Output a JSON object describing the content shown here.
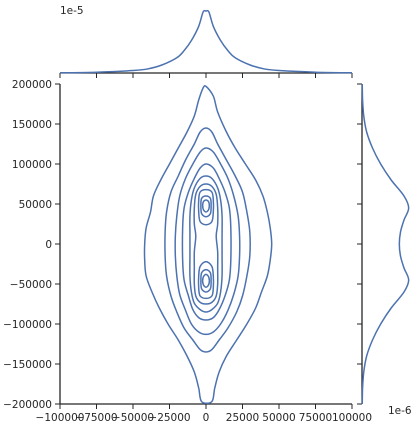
{
  "chart_data": {
    "type": "jointplot-kde",
    "title": "",
    "xlabel": "",
    "ylabel": "",
    "joint": {
      "xlim": [
        -100000,
        100000
      ],
      "ylim": [
        -200000,
        200000
      ],
      "xticks": [
        -100000,
        -75000,
        -50000,
        -25000,
        0,
        25000,
        50000,
        75000,
        100000
      ],
      "xtick_labels": [
        "−100000",
        "−75000",
        "−50000",
        "−25000",
        "0",
        "25000",
        "50000",
        "75000",
        "100000"
      ],
      "yticks": [
        -200000,
        -150000,
        -100000,
        -50000,
        0,
        50000,
        100000,
        150000,
        200000
      ],
      "ytick_labels": [
        "−200000",
        "−150000",
        "−100000",
        "−50000",
        "0",
        "50000",
        "100000",
        "150000",
        "200000"
      ],
      "contours": [
        {
          "level": 1,
          "points": [
            [
              0,
              197000
            ],
            [
              5000,
              185000
            ],
            [
              8000,
              165000
            ],
            [
              14000,
              140000
            ],
            [
              20000,
              120000
            ],
            [
              27000,
              100000
            ],
            [
              34000,
              80000
            ],
            [
              39000,
              60000
            ],
            [
              42000,
              40000
            ],
            [
              44000,
              20000
            ],
            [
              45000,
              0
            ],
            [
              44000,
              -20000
            ],
            [
              42000,
              -40000
            ],
            [
              38000,
              -60000
            ],
            [
              34000,
              -80000
            ],
            [
              28000,
              -100000
            ],
            [
              21000,
              -120000
            ],
            [
              14000,
              -140000
            ],
            [
              9000,
              -160000
            ],
            [
              6000,
              -180000
            ],
            [
              4000,
              -197000
            ],
            [
              -3000,
              -197000
            ],
            [
              -5000,
              -180000
            ],
            [
              -8000,
              -160000
            ],
            [
              -13000,
              -140000
            ],
            [
              -19000,
              -120000
            ],
            [
              -26000,
              -100000
            ],
            [
              -32000,
              -80000
            ],
            [
              -37000,
              -60000
            ],
            [
              -41000,
              -40000
            ],
            [
              -42000,
              -20000
            ],
            [
              -42000,
              0
            ],
            [
              -41000,
              20000
            ],
            [
              -38000,
              40000
            ],
            [
              -36000,
              60000
            ],
            [
              -31000,
              80000
            ],
            [
              -25000,
              100000
            ],
            [
              -19000,
              120000
            ],
            [
              -13000,
              140000
            ],
            [
              -8000,
              160000
            ],
            [
              -5000,
              180000
            ],
            [
              -2000,
              195000
            ]
          ]
        },
        {
          "level": 2,
          "points": [
            [
              0,
              145000
            ],
            [
              4000,
              140000
            ],
            [
              8000,
              125000
            ],
            [
              14000,
              105000
            ],
            [
              20000,
              85000
            ],
            [
              25000,
              65000
            ],
            [
              28000,
              40000
            ],
            [
              30000,
              15000
            ],
            [
              30000,
              -15000
            ],
            [
              28000,
              -40000
            ],
            [
              25000,
              -65000
            ],
            [
              21000,
              -85000
            ],
            [
              15000,
              -105000
            ],
            [
              9000,
              -120000
            ],
            [
              4000,
              -132000
            ],
            [
              0,
              -135000
            ],
            [
              -4000,
              -132000
            ],
            [
              -9000,
              -120000
            ],
            [
              -15000,
              -105000
            ],
            [
              -20000,
              -85000
            ],
            [
              -24000,
              -65000
            ],
            [
              -27000,
              -40000
            ],
            [
              -28000,
              -15000
            ],
            [
              -28000,
              15000
            ],
            [
              -27000,
              40000
            ],
            [
              -24000,
              65000
            ],
            [
              -19000,
              85000
            ],
            [
              -14000,
              105000
            ],
            [
              -8000,
              125000
            ],
            [
              -4000,
              140000
            ]
          ]
        },
        {
          "level": 3,
          "points": [
            [
              0,
              120000
            ],
            [
              5000,
              115000
            ],
            [
              10000,
              100000
            ],
            [
              15000,
              82000
            ],
            [
              19000,
              60000
            ],
            [
              22000,
              35000
            ],
            [
              23000,
              10000
            ],
            [
              23000,
              -15000
            ],
            [
              22000,
              -40000
            ],
            [
              19000,
              -63000
            ],
            [
              15000,
              -83000
            ],
            [
              10000,
              -100000
            ],
            [
              5000,
              -110000
            ],
            [
              0,
              -113000
            ],
            [
              -5000,
              -110000
            ],
            [
              -10000,
              -100000
            ],
            [
              -14000,
              -83000
            ],
            [
              -18000,
              -63000
            ],
            [
              -20000,
              -40000
            ],
            [
              -21000,
              -15000
            ],
            [
              -21000,
              10000
            ],
            [
              -20000,
              35000
            ],
            [
              -18000,
              60000
            ],
            [
              -14000,
              82000
            ],
            [
              -9000,
              100000
            ],
            [
              -4000,
              115000
            ]
          ]
        },
        {
          "level": 4,
          "points": [
            [
              0,
              100000
            ],
            [
              5000,
              95000
            ],
            [
              9000,
              82000
            ],
            [
              13000,
              65000
            ],
            [
              16000,
              45000
            ],
            [
              17000,
              20000
            ],
            [
              17000,
              -20000
            ],
            [
              16000,
              -45000
            ],
            [
              13000,
              -65000
            ],
            [
              9000,
              -82000
            ],
            [
              5000,
              -92000
            ],
            [
              0,
              -95000
            ],
            [
              -5000,
              -92000
            ],
            [
              -9000,
              -82000
            ],
            [
              -12000,
              -65000
            ],
            [
              -15000,
              -45000
            ],
            [
              -16000,
              -20000
            ],
            [
              -16000,
              20000
            ],
            [
              -15000,
              45000
            ],
            [
              -12000,
              65000
            ],
            [
              -8000,
              82000
            ],
            [
              -4000,
              95000
            ]
          ]
        },
        {
          "level": 5,
          "points": [
            [
              0,
              85000
            ],
            [
              4000,
              82000
            ],
            [
              8000,
              70000
            ],
            [
              10000,
              55000
            ],
            [
              11000,
              35000
            ],
            [
              11000,
              10000
            ],
            [
              11000,
              -15000
            ],
            [
              11000,
              -40000
            ],
            [
              10000,
              -60000
            ],
            [
              8000,
              -74000
            ],
            [
              4000,
              -82000
            ],
            [
              0,
              -85000
            ],
            [
              -4000,
              -82000
            ],
            [
              -8000,
              -74000
            ],
            [
              -10000,
              -60000
            ],
            [
              -11000,
              -40000
            ],
            [
              -11000,
              -15000
            ],
            [
              -11000,
              10000
            ],
            [
              -11000,
              35000
            ],
            [
              -10000,
              55000
            ],
            [
              -8000,
              70000
            ],
            [
              -4000,
              82000
            ]
          ]
        },
        {
          "level": 6,
          "points": [
            [
              0,
              75000
            ],
            [
              4000,
              72000
            ],
            [
              7000,
              62000
            ],
            [
              8000,
              45000
            ],
            [
              8000,
              25000
            ],
            [
              7000,
              10000
            ],
            [
              8000,
              -10000
            ],
            [
              8000,
              -30000
            ],
            [
              8000,
              -50000
            ],
            [
              7000,
              -65000
            ],
            [
              4000,
              -73000
            ],
            [
              0,
              -75000
            ],
            [
              -4000,
              -73000
            ],
            [
              -7000,
              -65000
            ],
            [
              -8000,
              -50000
            ],
            [
              -8000,
              -30000
            ],
            [
              -8000,
              -10000
            ],
            [
              -7000,
              10000
            ],
            [
              -8000,
              25000
            ],
            [
              -8000,
              45000
            ],
            [
              -7000,
              62000
            ],
            [
              -4000,
              72000
            ]
          ]
        },
        {
          "level": 7,
          "points": [
            [
              0,
              68000
            ],
            [
              4000,
              65000
            ],
            [
              5000,
              55000
            ],
            [
              5000,
              40000
            ],
            [
              4000,
              28000
            ],
            [
              0,
              24000
            ],
            [
              -4000,
              28000
            ],
            [
              -5000,
              40000
            ],
            [
              -5000,
              55000
            ],
            [
              -4000,
              65000
            ]
          ]
        },
        {
          "level": 7,
          "points": [
            [
              0,
              -22000
            ],
            [
              4000,
              -28000
            ],
            [
              5000,
              -40000
            ],
            [
              5000,
              -55000
            ],
            [
              4000,
              -65000
            ],
            [
              0,
              -68000
            ],
            [
              -4000,
              -65000
            ],
            [
              -5000,
              -55000
            ],
            [
              -5000,
              -40000
            ],
            [
              -4000,
              -28000
            ]
          ]
        },
        {
          "level": 8,
          "points": [
            [
              0,
              60000
            ],
            [
              3000,
              57000
            ],
            [
              3500,
              48000
            ],
            [
              3000,
              38000
            ],
            [
              0,
              34000
            ],
            [
              -3000,
              38000
            ],
            [
              -3500,
              48000
            ],
            [
              -3000,
              57000
            ]
          ]
        },
        {
          "level": 8,
          "points": [
            [
              0,
              -32000
            ],
            [
              3000,
              -36000
            ],
            [
              3500,
              -46000
            ],
            [
              3000,
              -56000
            ],
            [
              0,
              -60000
            ],
            [
              -3000,
              -56000
            ],
            [
              -3500,
              -46000
            ],
            [
              -3000,
              -36000
            ]
          ]
        },
        {
          "level": 9,
          "points": [
            [
              0,
              55000
            ],
            [
              2000,
              52000
            ],
            [
              2000,
              44000
            ],
            [
              0,
              40000
            ],
            [
              -2000,
              44000
            ],
            [
              -2000,
              52000
            ]
          ]
        },
        {
          "level": 9,
          "points": [
            [
              0,
              -38000
            ],
            [
              2000,
              -42000
            ],
            [
              2000,
              -50000
            ],
            [
              0,
              -54000
            ],
            [
              -2000,
              -50000
            ],
            [
              -2000,
              -42000
            ]
          ]
        }
      ]
    },
    "marginal_x": {
      "offset_text": "1e-5",
      "ylim": [
        0,
        3.2
      ],
      "points": [
        [
          -100000,
          0.01
        ],
        [
          -75000,
          0.04
        ],
        [
          -50000,
          0.12
        ],
        [
          -40000,
          0.2
        ],
        [
          -30000,
          0.4
        ],
        [
          -20000,
          0.75
        ],
        [
          -15000,
          1.1
        ],
        [
          -10000,
          1.6
        ],
        [
          -5000,
          2.3
        ],
        [
          -2000,
          3.0
        ],
        [
          0,
          3.05
        ],
        [
          2000,
          3.0
        ],
        [
          5000,
          2.3
        ],
        [
          10000,
          1.6
        ],
        [
          15000,
          1.1
        ],
        [
          20000,
          0.75
        ],
        [
          30000,
          0.4
        ],
        [
          40000,
          0.2
        ],
        [
          50000,
          0.12
        ],
        [
          75000,
          0.04
        ],
        [
          100000,
          0.01
        ]
      ]
    },
    "marginal_y": {
      "offset_text": "1e-6",
      "xlim": [
        0,
        4.8
      ],
      "points": [
        [
          200000,
          0.02
        ],
        [
          180000,
          0.05
        ],
        [
          160000,
          0.15
        ],
        [
          140000,
          0.4
        ],
        [
          120000,
          0.9
        ],
        [
          100000,
          1.6
        ],
        [
          80000,
          2.5
        ],
        [
          60000,
          3.6
        ],
        [
          45000,
          4.0
        ],
        [
          30000,
          3.6
        ],
        [
          15000,
          3.3
        ],
        [
          0,
          3.2
        ],
        [
          -15000,
          3.3
        ],
        [
          -30000,
          3.6
        ],
        [
          -45000,
          4.0
        ],
        [
          -60000,
          3.6
        ],
        [
          -80000,
          2.5
        ],
        [
          -100000,
          1.6
        ],
        [
          -120000,
          0.9
        ],
        [
          -140000,
          0.4
        ],
        [
          -160000,
          0.15
        ],
        [
          -180000,
          0.05
        ],
        [
          -200000,
          0.02
        ]
      ]
    }
  }
}
